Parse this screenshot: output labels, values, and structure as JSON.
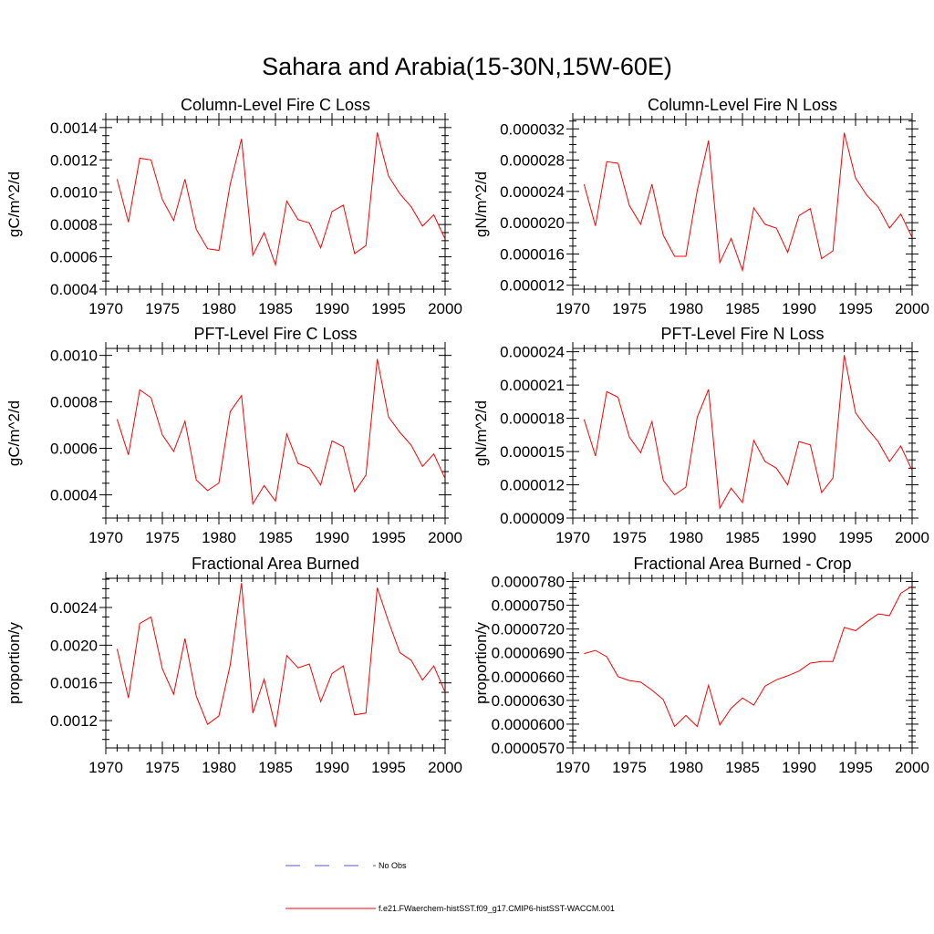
{
  "title": "Sahara and Arabia(15-30N,15W-60E)",
  "legend": [
    {
      "label": "No Obs",
      "color": "#5a5ac8",
      "dash": "dashed"
    },
    {
      "label": "f.e21.FWaerchem-histSST.f09_g17.CMIP6-histSST-WACCM.001",
      "color": "#ff0000",
      "dash": "solid"
    }
  ],
  "chart_data": [
    {
      "type": "line",
      "title": "Column-Level Fire C Loss",
      "ylabel": "gC/m^2/d",
      "xlim": [
        1970,
        2000
      ],
      "ylim": [
        0.0004,
        0.00145
      ],
      "xticks": [
        "1970",
        "1975",
        "1980",
        "1985",
        "1990",
        "1995",
        "2000"
      ],
      "yticks": [
        {
          "v": 0.0004,
          "label": "0.0004"
        },
        {
          "v": 0.0006,
          "label": "0.0006"
        },
        {
          "v": 0.0008,
          "label": "0.0008"
        },
        {
          "v": 0.001,
          "label": "0.0010"
        },
        {
          "v": 0.0012,
          "label": "0.0012"
        },
        {
          "v": 0.0014,
          "label": "0.0014"
        }
      ],
      "x": [
        1971,
        1972,
        1973,
        1974,
        1975,
        1976,
        1977,
        1978,
        1979,
        1980,
        1981,
        1982,
        1983,
        1984,
        1985,
        1986,
        1987,
        1988,
        1989,
        1990,
        1991,
        1992,
        1993,
        1994,
        1995,
        1996,
        1997,
        1998,
        1999,
        2000
      ],
      "series": [
        {
          "color": "#ff0000",
          "values": [
            0.00108,
            0.000815,
            0.00121,
            0.0012,
            0.000955,
            0.000825,
            0.00108,
            0.00077,
            0.00065,
            0.00064,
            0.00105,
            0.00133,
            0.00061,
            0.00075,
            0.00055,
            0.000945,
            0.00083,
            0.00081,
            0.000655,
            0.00088,
            0.00092,
            0.00062,
            0.00067,
            0.00137,
            0.0011,
            0.00099,
            0.00091,
            0.00079,
            0.00086,
            0.00071
          ]
        }
      ]
    },
    {
      "type": "line",
      "title": "Column-Level Fire N Loss",
      "ylabel": "gN/m^2/d",
      "xlim": [
        1970,
        2000
      ],
      "ylim": [
        1.15e-05,
        3.32e-05
      ],
      "xticks": [
        "1970",
        "1975",
        "1980",
        "1985",
        "1990",
        "1995",
        "2000"
      ],
      "yticks": [
        {
          "v": 1.2e-05,
          "label": "0.000012"
        },
        {
          "v": 1.6e-05,
          "label": "0.000016"
        },
        {
          "v": 2e-05,
          "label": "0.000020"
        },
        {
          "v": 2.4e-05,
          "label": "0.000024"
        },
        {
          "v": 2.8e-05,
          "label": "0.000028"
        },
        {
          "v": 3.2e-05,
          "label": "0.000032"
        }
      ],
      "x": [
        1971,
        1972,
        1973,
        1974,
        1975,
        1976,
        1977,
        1978,
        1979,
        1980,
        1981,
        1982,
        1983,
        1984,
        1985,
        1986,
        1987,
        1988,
        1989,
        1990,
        1991,
        1992,
        1993,
        1994,
        1995,
        1996,
        1997,
        1998,
        1999,
        2000
      ],
      "series": [
        {
          "color": "#ff0000",
          "values": [
            2.49e-05,
            1.96e-05,
            2.78e-05,
            2.76e-05,
            2.22e-05,
            1.98e-05,
            2.49e-05,
            1.84e-05,
            1.57e-05,
            1.57e-05,
            2.41e-05,
            3.05e-05,
            1.49e-05,
            1.8e-05,
            1.39e-05,
            2.19e-05,
            1.98e-05,
            1.93e-05,
            1.62e-05,
            2.09e-05,
            2.18e-05,
            1.54e-05,
            1.64e-05,
            3.15e-05,
            2.57e-05,
            2.35e-05,
            2.2e-05,
            1.93e-05,
            2.11e-05,
            1.81e-05
          ]
        }
      ]
    },
    {
      "type": "line",
      "title": "PFT-Level Fire C Loss",
      "ylabel": "gC/m^2/d",
      "xlim": [
        1970,
        2000
      ],
      "ylim": [
        0.0003,
        0.00103
      ],
      "xticks": [
        "1970",
        "1975",
        "1980",
        "1985",
        "1990",
        "1995",
        "2000"
      ],
      "yticks": [
        {
          "v": 0.0004,
          "label": "0.0004"
        },
        {
          "v": 0.0006,
          "label": "0.0006"
        },
        {
          "v": 0.0008,
          "label": "0.0008"
        },
        {
          "v": 0.001,
          "label": "0.0010"
        }
      ],
      "x": [
        1971,
        1972,
        1973,
        1974,
        1975,
        1976,
        1977,
        1978,
        1979,
        1980,
        1981,
        1982,
        1983,
        1984,
        1985,
        1986,
        1987,
        1988,
        1989,
        1990,
        1991,
        1992,
        1993,
        1994,
        1995,
        1996,
        1997,
        1998,
        1999,
        2000
      ],
      "series": [
        {
          "color": "#ff0000",
          "values": [
            0.000725,
            0.000572,
            0.000852,
            0.000818,
            0.000658,
            0.000587,
            0.000717,
            0.000464,
            0.000418,
            0.000451,
            0.000758,
            0.000827,
            0.000361,
            0.00044,
            0.000373,
            0.000662,
            0.000535,
            0.000516,
            0.000442,
            0.000632,
            0.000607,
            0.000414,
            0.000485,
            0.000985,
            0.000735,
            0.000669,
            0.000614,
            0.000522,
            0.000576,
            0.00047
          ]
        }
      ]
    },
    {
      "type": "line",
      "title": "PFT-Level Fire N Loss",
      "ylabel": "gN/m^2/d",
      "xlim": [
        1970,
        2000
      ],
      "ylim": [
        9e-06,
        2.43e-05
      ],
      "xticks": [
        "1970",
        "1975",
        "1980",
        "1985",
        "1990",
        "1995",
        "2000"
      ],
      "yticks": [
        {
          "v": 9e-06,
          "label": "0.000009"
        },
        {
          "v": 1.2e-05,
          "label": "0.000012"
        },
        {
          "v": 1.5e-05,
          "label": "0.000015"
        },
        {
          "v": 1.8e-05,
          "label": "0.000018"
        },
        {
          "v": 2.1e-05,
          "label": "0.000021"
        },
        {
          "v": 2.4e-05,
          "label": "0.000024"
        }
      ],
      "x": [
        1971,
        1972,
        1973,
        1974,
        1975,
        1976,
        1977,
        1978,
        1979,
        1980,
        1981,
        1982,
        1983,
        1984,
        1985,
        1986,
        1987,
        1988,
        1989,
        1990,
        1991,
        1992,
        1993,
        1994,
        1995,
        1996,
        1997,
        1998,
        1999,
        2000
      ],
      "series": [
        {
          "color": "#ff0000",
          "values": [
            1.79e-05,
            1.46e-05,
            2.04e-05,
            1.99e-05,
            1.63e-05,
            1.49e-05,
            1.77e-05,
            1.24e-05,
            1.11e-05,
            1.18e-05,
            1.81e-05,
            2.06e-05,
            9.9e-06,
            1.17e-05,
            1.04e-05,
            1.6e-05,
            1.41e-05,
            1.35e-05,
            1.2e-05,
            1.59e-05,
            1.56e-05,
            1.13e-05,
            1.26e-05,
            2.37e-05,
            1.85e-05,
            1.71e-05,
            1.59e-05,
            1.41e-05,
            1.55e-05,
            1.33e-05
          ]
        }
      ]
    },
    {
      "type": "line",
      "title": "Fractional Area Burned",
      "ylabel": "proportion/y",
      "xlim": [
        1970,
        2000
      ],
      "ylim": [
        0.00091,
        0.00271
      ],
      "xticks": [
        "1970",
        "1975",
        "1980",
        "1985",
        "1990",
        "1995",
        "2000"
      ],
      "yticks": [
        {
          "v": 0.0012,
          "label": "0.0012"
        },
        {
          "v": 0.0016,
          "label": "0.0016"
        },
        {
          "v": 0.002,
          "label": "0.0020"
        },
        {
          "v": 0.0024,
          "label": "0.0024"
        }
      ],
      "x": [
        1971,
        1972,
        1973,
        1974,
        1975,
        1976,
        1977,
        1978,
        1979,
        1980,
        1981,
        1982,
        1983,
        1984,
        1985,
        1986,
        1987,
        1988,
        1989,
        1990,
        1991,
        1992,
        1993,
        1994,
        1995,
        1996,
        1997,
        1998,
        1999,
        2000
      ],
      "series": [
        {
          "color": "#ff0000",
          "values": [
            0.00196,
            0.00144,
            0.00223,
            0.0023,
            0.00175,
            0.00148,
            0.00207,
            0.00146,
            0.00116,
            0.00125,
            0.00179,
            0.00266,
            0.00128,
            0.00164,
            0.00113,
            0.00189,
            0.00176,
            0.0018,
            0.0014,
            0.0017,
            0.00178,
            0.00126,
            0.00128,
            0.00261,
            0.00225,
            0.00192,
            0.00184,
            0.00163,
            0.00178,
            0.0015
          ]
        }
      ]
    },
    {
      "type": "line",
      "title": "Fractional Area Burned - Crop",
      "ylabel": "proportion/y",
      "xlim": [
        1970,
        2000
      ],
      "ylim": [
        5.7e-05,
        7.84e-05
      ],
      "xticks": [
        "1970",
        "1975",
        "1980",
        "1985",
        "1990",
        "1995",
        "2000"
      ],
      "yticks": [
        {
          "v": 5.7e-05,
          "label": "0.0000570"
        },
        {
          "v": 6e-05,
          "label": "0.0000600"
        },
        {
          "v": 6.3e-05,
          "label": "0.0000630"
        },
        {
          "v": 6.6e-05,
          "label": "0.0000660"
        },
        {
          "v": 6.9e-05,
          "label": "0.0000690"
        },
        {
          "v": 7.2e-05,
          "label": "0.0000720"
        },
        {
          "v": 7.5e-05,
          "label": "0.0000750"
        },
        {
          "v": 7.8e-05,
          "label": "0.0000780"
        }
      ],
      "x": [
        1971,
        1972,
        1973,
        1974,
        1975,
        1976,
        1977,
        1978,
        1979,
        1980,
        1981,
        1982,
        1983,
        1984,
        1985,
        1986,
        1987,
        1988,
        1989,
        1990,
        1991,
        1992,
        1993,
        1994,
        1995,
        1996,
        1997,
        1998,
        1999,
        2000
      ],
      "series": [
        {
          "color": "#ff0000",
          "values": [
            6.89e-05,
            6.93e-05,
            6.85e-05,
            6.6e-05,
            6.55e-05,
            6.53e-05,
            6.43e-05,
            6.31e-05,
            5.97e-05,
            6.11e-05,
            5.97e-05,
            6.49e-05,
            5.99e-05,
            6.2e-05,
            6.33e-05,
            6.24e-05,
            6.48e-05,
            6.56e-05,
            6.61e-05,
            6.67e-05,
            6.77e-05,
            6.79e-05,
            6.79e-05,
            7.22e-05,
            7.18e-05,
            7.29e-05,
            7.39e-05,
            7.37e-05,
            7.65e-05,
            7.74e-05
          ]
        }
      ]
    }
  ]
}
